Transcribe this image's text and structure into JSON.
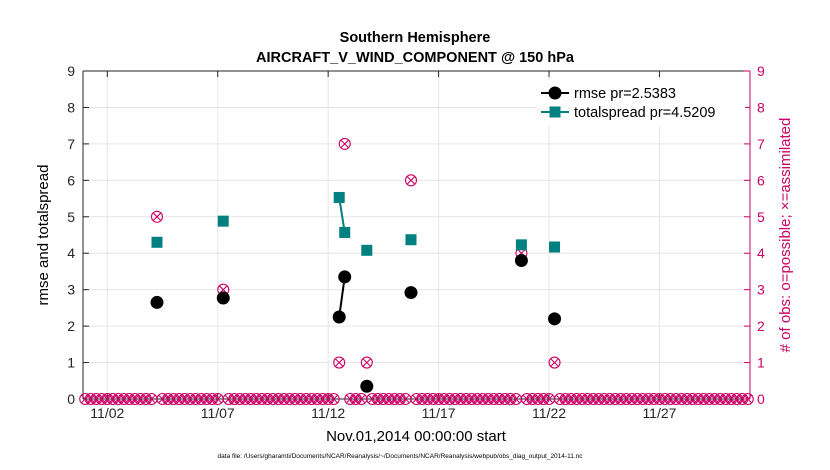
{
  "chart_data": {
    "type": "line",
    "title": "Southern Hemisphere",
    "subtitle": "AIRCRAFT_V_WIND_COMPONENT @ 150 hPa",
    "xlabel": "Nov.01,2014 00:00:00 start",
    "ylabel": "rmse and totalspread",
    "y2label": "# of obs: o=possible; ×=assimilated",
    "xlim": [
      0.4,
      30.6
    ],
    "ylim": [
      0,
      9
    ],
    "y2lim": [
      0,
      9
    ],
    "x_ticks": [
      1.5,
      6.5,
      11.5,
      16.5,
      21.5,
      26.5
    ],
    "x_tick_labels": [
      "11/02",
      "11/07",
      "11/12",
      "11/17",
      "11/22",
      "11/27"
    ],
    "y_ticks": [
      0,
      1,
      2,
      3,
      4,
      5,
      6,
      7,
      8,
      9
    ],
    "y2_ticks": [
      0,
      1,
      2,
      3,
      4,
      5,
      6,
      7,
      8,
      9
    ],
    "grid": true,
    "legend_position": "top-right",
    "series": [
      {
        "name": "rmse pr=2.5383",
        "color": "#000000",
        "marker": "circle",
        "points": [
          {
            "x": 3.75,
            "y": 2.65
          },
          {
            "x": 6.75,
            "y": 2.77
          },
          {
            "x": 12.0,
            "y": 2.25
          },
          {
            "x": 12.25,
            "y": 3.35
          },
          {
            "x": 13.25,
            "y": 0.35
          },
          {
            "x": 15.25,
            "y": 2.92
          },
          {
            "x": 20.25,
            "y": 3.8
          },
          {
            "x": 21.75,
            "y": 2.2
          }
        ],
        "segments": [
          [
            2,
            3
          ]
        ]
      },
      {
        "name": "totalspread pr=4.5209",
        "color": "#008080",
        "marker": "square",
        "points": [
          {
            "x": 3.75,
            "y": 4.3
          },
          {
            "x": 6.75,
            "y": 4.88
          },
          {
            "x": 12.0,
            "y": 5.53
          },
          {
            "x": 12.25,
            "y": 4.57
          },
          {
            "x": 13.25,
            "y": 4.08
          },
          {
            "x": 15.25,
            "y": 4.37
          },
          {
            "x": 20.25,
            "y": 4.23
          },
          {
            "x": 21.75,
            "y": 4.17
          }
        ],
        "segments": [
          [
            2,
            3
          ]
        ]
      }
    ],
    "obs_count": {
      "color": "#cc0066",
      "x_start": 0.5,
      "x_step": 0.25,
      "n": 121,
      "nonzero": [
        {
          "x": 3.75,
          "possible": 5,
          "assimilated": 5
        },
        {
          "x": 6.75,
          "possible": 3,
          "assimilated": 3
        },
        {
          "x": 12.0,
          "possible": 1,
          "assimilated": 1
        },
        {
          "x": 12.25,
          "possible": 7,
          "assimilated": 7
        },
        {
          "x": 13.25,
          "possible": 1,
          "assimilated": 1
        },
        {
          "x": 15.25,
          "possible": 6,
          "assimilated": 6
        },
        {
          "x": 20.25,
          "possible": 4,
          "assimilated": 4
        },
        {
          "x": 21.75,
          "possible": 1,
          "assimilated": 1
        }
      ]
    },
    "footnote": "data file: /Users/gharamti/Documents/NCAR/Reanalysis/~/Documents/NCAR/Reanalysis/webpub/obs_diag_output_2014-11.nc"
  }
}
